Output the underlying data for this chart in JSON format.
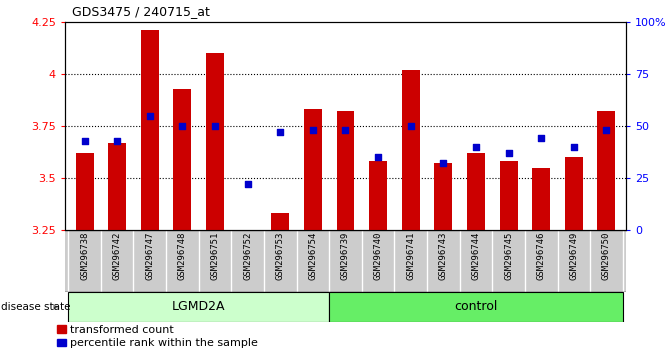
{
  "title": "GDS3475 / 240715_at",
  "samples": [
    "GSM296738",
    "GSM296742",
    "GSM296747",
    "GSM296748",
    "GSM296751",
    "GSM296752",
    "GSM296753",
    "GSM296754",
    "GSM296739",
    "GSM296740",
    "GSM296741",
    "GSM296743",
    "GSM296744",
    "GSM296745",
    "GSM296746",
    "GSM296749",
    "GSM296750"
  ],
  "transformed_count": [
    3.62,
    3.67,
    4.21,
    3.93,
    4.1,
    3.25,
    3.33,
    3.83,
    3.82,
    3.58,
    4.02,
    3.57,
    3.62,
    3.58,
    3.55,
    3.6,
    3.82
  ],
  "percentile_rank": [
    43,
    43,
    55,
    50,
    50,
    22,
    47,
    48,
    48,
    35,
    50,
    32,
    40,
    37,
    44,
    40,
    48
  ],
  "groups": [
    {
      "label": "LGMD2A",
      "start": 0,
      "end": 8,
      "color": "#ccffcc"
    },
    {
      "label": "control",
      "start": 8,
      "end": 17,
      "color": "#66ee66"
    }
  ],
  "ylim_left": [
    3.25,
    4.25
  ],
  "ylim_right": [
    0,
    100
  ],
  "yticks_left": [
    3.25,
    3.5,
    3.75,
    4.0,
    4.25
  ],
  "yticks_right": [
    0,
    25,
    50,
    75,
    100
  ],
  "ytick_labels_left": [
    "3.25",
    "3.5",
    "3.75",
    "4",
    "4.25"
  ],
  "ytick_labels_right": [
    "0",
    "25",
    "50",
    "75",
    "100%"
  ],
  "bar_color": "#cc0000",
  "dot_color": "#0000cc",
  "baseline": 3.25,
  "bar_width": 0.55,
  "disease_state_label": "disease state",
  "legend_items": [
    "transformed count",
    "percentile rank within the sample"
  ],
  "background_color": "#ffffff",
  "tick_area_color": "#cccccc",
  "grid_yticks": [
    3.5,
    3.75,
    4.0
  ]
}
